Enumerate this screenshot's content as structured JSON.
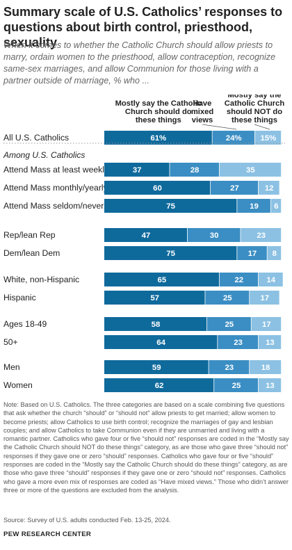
{
  "title": "Summary scale of U.S. Catholics’ responses to questions about birth control, priesthood, sexuality",
  "subtitle": "When it comes to whether the Catholic Church should allow priests to marry, ordain women to the priesthood, allow contraception, recognize same-sex marriages, and allow Communion for those living with a partner outside of marriage, % who ...",
  "note": "Note: Based on U.S. Catholics. The three categories are based on a scale combining five questions that ask whether the church “should” or “should not” allow priests to get married; allow women to become priests; allow Catholics to use birth control; recognize the marriages of gay and lesbian couples; and allow Catholics to take Communion even if they are unmarried and living with a romantic partner. Catholics who gave four or five “should not” responses are coded in the “Mostly say the Catholic Church should NOT do these things” category, as are those who gave three “should not” responses if they gave one or zero “should” responses. Catholics who gave four or five “should” responses are coded in the “Mostly say the Catholic Church should do these things” category, as are those who gave three “should” responses if they gave one or zero “should not” responses. Catholics who gave a more even mix of responses are coded as “Have mixed views.” Those who didn’t answer three or more of the questions are excluded from the analysis.",
  "source": "Source: Survey of U.S. adults conducted Feb. 13-25, 2024.",
  "brand": "PEW RESEARCH CENTER",
  "colors": {
    "should_do": "#0f6a9c",
    "mixed": "#3b8ec3",
    "should_not": "#8cc1e3",
    "text_on_dark": "#ffffff",
    "text_on_light": "#ffffff",
    "header_text": "#222222"
  },
  "chart_data": {
    "type": "bar",
    "orientation": "horizontal",
    "stacked": true,
    "series": [
      {
        "name": "Mostly say the Catholic Church should do these things",
        "header_lines": [
          "Mostly say the Catholic",
          "Church should do",
          "these things"
        ],
        "values": [
          61,
          37,
          60,
          75,
          47,
          75,
          65,
          57,
          58,
          64,
          59,
          62
        ]
      },
      {
        "name": "Have mixed views",
        "header_lines": [
          "Have",
          "mixed",
          "views"
        ],
        "values": [
          24,
          28,
          27,
          19,
          30,
          17,
          22,
          25,
          25,
          23,
          23,
          25
        ]
      },
      {
        "name": "Mostly say the Catholic Church should NOT do these things",
        "header_lines": [
          "Mostly say the",
          "Catholic Church",
          "should NOT do",
          "these things"
        ],
        "values": [
          15,
          35,
          12,
          6,
          23,
          8,
          14,
          17,
          17,
          13,
          18,
          13
        ]
      }
    ],
    "categories": [
      "All U.S. Catholics",
      "Attend Mass at least weekly",
      "Attend Mass monthly/yearly",
      "Attend Mass seldom/never",
      "Rep/lean Rep",
      "Dem/lean Dem",
      "White, non-Hispanic",
      "Hispanic",
      "Ages 18-49",
      "50+",
      "Men",
      "Women"
    ],
    "value_labels": [
      [
        "61%",
        "24%",
        "15%"
      ],
      [
        "37",
        "28",
        "35"
      ],
      [
        "60",
        "27",
        "12"
      ],
      [
        "75",
        "19",
        "6"
      ],
      [
        "47",
        "30",
        "23"
      ],
      [
        "75",
        "17",
        "8"
      ],
      [
        "65",
        "22",
        "14"
      ],
      [
        "57",
        "25",
        "17"
      ],
      [
        "58",
        "25",
        "17"
      ],
      [
        "64",
        "23",
        "13"
      ],
      [
        "59",
        "23",
        "18"
      ],
      [
        "62",
        "25",
        "13"
      ]
    ],
    "group_label": "Among U.S. Catholics",
    "xlim": [
      0,
      100
    ],
    "grid": false,
    "legend": "column headers above first bar"
  }
}
